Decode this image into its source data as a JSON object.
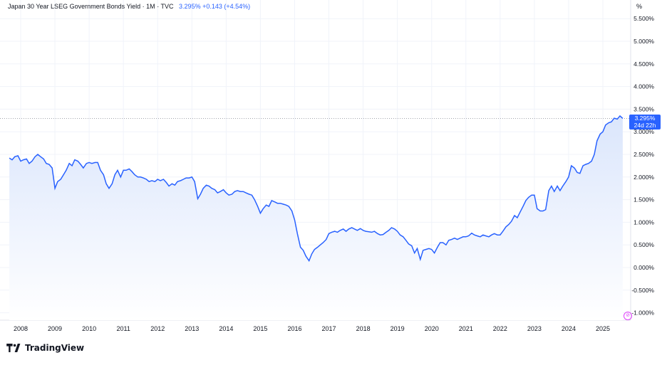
{
  "header": {
    "symbol": "Japan 30 Year LSEG Government Bonds Yield",
    "interval": "1M",
    "source": "TVC",
    "last": "3.295%",
    "change": "+0.143",
    "change_pct": "(+4.54%)"
  },
  "axis_unit_label": "%",
  "price_tag": {
    "value": "3.295%",
    "countdown": "24d 22h"
  },
  "logo_text": "TradingView",
  "colors": {
    "line": "#2962ff",
    "fill_top": "#dbe6fc",
    "fill_bottom": "#ffffff",
    "tag": "#2962ff"
  },
  "chart_data": {
    "type": "area",
    "title": "Japan 30 Year LSEG Government Bonds Yield",
    "xlabel": "",
    "ylabel": "",
    "y_unit": "%",
    "xlim": [
      2007.67,
      2025.58
    ],
    "ylim": [
      -1.05,
      5.85
    ],
    "x_ticks": [
      "2008",
      "2009",
      "2010",
      "2011",
      "2012",
      "2013",
      "2014",
      "2015",
      "2016",
      "2017",
      "2018",
      "2019",
      "2020",
      "2021",
      "2022",
      "2023",
      "2024",
      "2025"
    ],
    "y_ticks": [
      "5.500%",
      "5.000%",
      "4.500%",
      "4.000%",
      "3.500%",
      "3.000%",
      "2.500%",
      "2.000%",
      "1.500%",
      "1.000%",
      "0.500%",
      "0.000%",
      "-0.500%",
      "-1.000%"
    ],
    "y_tick_values": [
      5.5,
      5.0,
      4.5,
      4.0,
      3.5,
      3.0,
      2.5,
      2.0,
      1.5,
      1.0,
      0.5,
      0.0,
      -0.5,
      -1.0
    ],
    "grid": true,
    "series": [
      {
        "x": [
          2007.67,
          2007.75,
          2007.83,
          2007.92,
          2008.0,
          2008.08,
          2008.17,
          2008.25,
          2008.33,
          2008.42,
          2008.5,
          2008.58,
          2008.67,
          2008.75,
          2008.83,
          2008.92,
          2009.0,
          2009.08,
          2009.17,
          2009.25,
          2009.33,
          2009.42,
          2009.5,
          2009.58,
          2009.67,
          2009.75,
          2009.83,
          2009.92,
          2010.0,
          2010.08,
          2010.17,
          2010.25,
          2010.33,
          2010.42,
          2010.5,
          2010.58,
          2010.67,
          2010.75,
          2010.83,
          2010.92,
          2011.0,
          2011.08,
          2011.17,
          2011.25,
          2011.33,
          2011.42,
          2011.5,
          2011.58,
          2011.67,
          2011.75,
          2011.83,
          2011.92,
          2012.0,
          2012.08,
          2012.17,
          2012.25,
          2012.33,
          2012.42,
          2012.5,
          2012.58,
          2012.67,
          2012.75,
          2012.83,
          2012.92,
          2013.0,
          2013.08,
          2013.17,
          2013.25,
          2013.33,
          2013.42,
          2013.5,
          2013.58,
          2013.67,
          2013.75,
          2013.83,
          2013.92,
          2014.0,
          2014.08,
          2014.17,
          2014.25,
          2014.33,
          2014.42,
          2014.5,
          2014.58,
          2014.67,
          2014.75,
          2014.83,
          2014.92,
          2015.0,
          2015.08,
          2015.17,
          2015.25,
          2015.33,
          2015.42,
          2015.5,
          2015.58,
          2015.67,
          2015.75,
          2015.83,
          2015.92,
          2016.0,
          2016.08,
          2016.17,
          2016.25,
          2016.33,
          2016.42,
          2016.5,
          2016.58,
          2016.67,
          2016.75,
          2016.83,
          2016.92,
          2017.0,
          2017.08,
          2017.17,
          2017.25,
          2017.33,
          2017.42,
          2017.5,
          2017.58,
          2017.67,
          2017.75,
          2017.83,
          2017.92,
          2018.0,
          2018.08,
          2018.17,
          2018.25,
          2018.33,
          2018.42,
          2018.5,
          2018.58,
          2018.67,
          2018.75,
          2018.83,
          2018.92,
          2019.0,
          2019.08,
          2019.17,
          2019.25,
          2019.33,
          2019.42,
          2019.5,
          2019.58,
          2019.67,
          2019.75,
          2019.83,
          2019.92,
          2020.0,
          2020.08,
          2020.17,
          2020.25,
          2020.33,
          2020.42,
          2020.5,
          2020.58,
          2020.67,
          2020.75,
          2020.83,
          2020.92,
          2021.0,
          2021.08,
          2021.17,
          2021.25,
          2021.33,
          2021.42,
          2021.5,
          2021.58,
          2021.67,
          2021.75,
          2021.83,
          2021.92,
          2022.0,
          2022.08,
          2022.17,
          2022.25,
          2022.33,
          2022.42,
          2022.5,
          2022.58,
          2022.67,
          2022.75,
          2022.83,
          2022.92,
          2023.0,
          2023.08,
          2023.17,
          2023.25,
          2023.33,
          2023.42,
          2023.5,
          2023.58,
          2023.67,
          2023.75,
          2023.83,
          2023.92,
          2024.0,
          2024.08,
          2024.17,
          2024.25,
          2024.33,
          2024.42,
          2024.5,
          2024.58,
          2024.67,
          2024.75,
          2024.83,
          2024.92,
          2025.0,
          2025.08,
          2025.17,
          2025.25,
          2025.33,
          2025.42,
          2025.5,
          2025.58
        ],
        "y": [
          2.42,
          2.38,
          2.45,
          2.47,
          2.35,
          2.38,
          2.4,
          2.3,
          2.35,
          2.45,
          2.5,
          2.45,
          2.4,
          2.3,
          2.28,
          2.2,
          1.75,
          1.9,
          1.95,
          2.05,
          2.15,
          2.3,
          2.25,
          2.38,
          2.35,
          2.28,
          2.2,
          2.3,
          2.32,
          2.3,
          2.32,
          2.32,
          2.15,
          2.05,
          1.85,
          1.75,
          1.85,
          2.05,
          2.15,
          2.0,
          2.15,
          2.15,
          2.18,
          2.12,
          2.05,
          2.0,
          2.0,
          1.98,
          1.95,
          1.9,
          1.92,
          1.9,
          1.95,
          1.92,
          1.95,
          1.88,
          1.8,
          1.85,
          1.82,
          1.9,
          1.92,
          1.95,
          1.98,
          1.98,
          2.0,
          1.9,
          1.52,
          1.62,
          1.75,
          1.82,
          1.8,
          1.75,
          1.72,
          1.65,
          1.68,
          1.72,
          1.65,
          1.6,
          1.62,
          1.68,
          1.7,
          1.68,
          1.68,
          1.65,
          1.62,
          1.6,
          1.5,
          1.35,
          1.2,
          1.3,
          1.38,
          1.35,
          1.48,
          1.45,
          1.42,
          1.42,
          1.4,
          1.38,
          1.35,
          1.25,
          1.05,
          0.75,
          0.45,
          0.38,
          0.25,
          0.15,
          0.3,
          0.4,
          0.45,
          0.5,
          0.55,
          0.62,
          0.75,
          0.78,
          0.8,
          0.78,
          0.82,
          0.85,
          0.8,
          0.85,
          0.88,
          0.85,
          0.82,
          0.86,
          0.82,
          0.8,
          0.79,
          0.78,
          0.8,
          0.75,
          0.72,
          0.73,
          0.78,
          0.82,
          0.88,
          0.85,
          0.8,
          0.72,
          0.68,
          0.6,
          0.52,
          0.48,
          0.32,
          0.42,
          0.18,
          0.38,
          0.4,
          0.42,
          0.4,
          0.32,
          0.45,
          0.55,
          0.55,
          0.5,
          0.6,
          0.62,
          0.65,
          0.62,
          0.65,
          0.68,
          0.68,
          0.7,
          0.76,
          0.72,
          0.7,
          0.68,
          0.72,
          0.7,
          0.68,
          0.72,
          0.75,
          0.72,
          0.72,
          0.8,
          0.9,
          0.95,
          1.02,
          1.15,
          1.1,
          1.22,
          1.35,
          1.48,
          1.55,
          1.6,
          1.6,
          1.3,
          1.25,
          1.25,
          1.28,
          1.7,
          1.8,
          1.68,
          1.8,
          1.7,
          1.8,
          1.9,
          2.0,
          2.25,
          2.2,
          2.1,
          2.08,
          2.25,
          2.28,
          2.3,
          2.35,
          2.5,
          2.8,
          2.95,
          3.0,
          3.15,
          3.2,
          3.22,
          3.3,
          3.28,
          3.35,
          3.295
        ]
      }
    ]
  }
}
